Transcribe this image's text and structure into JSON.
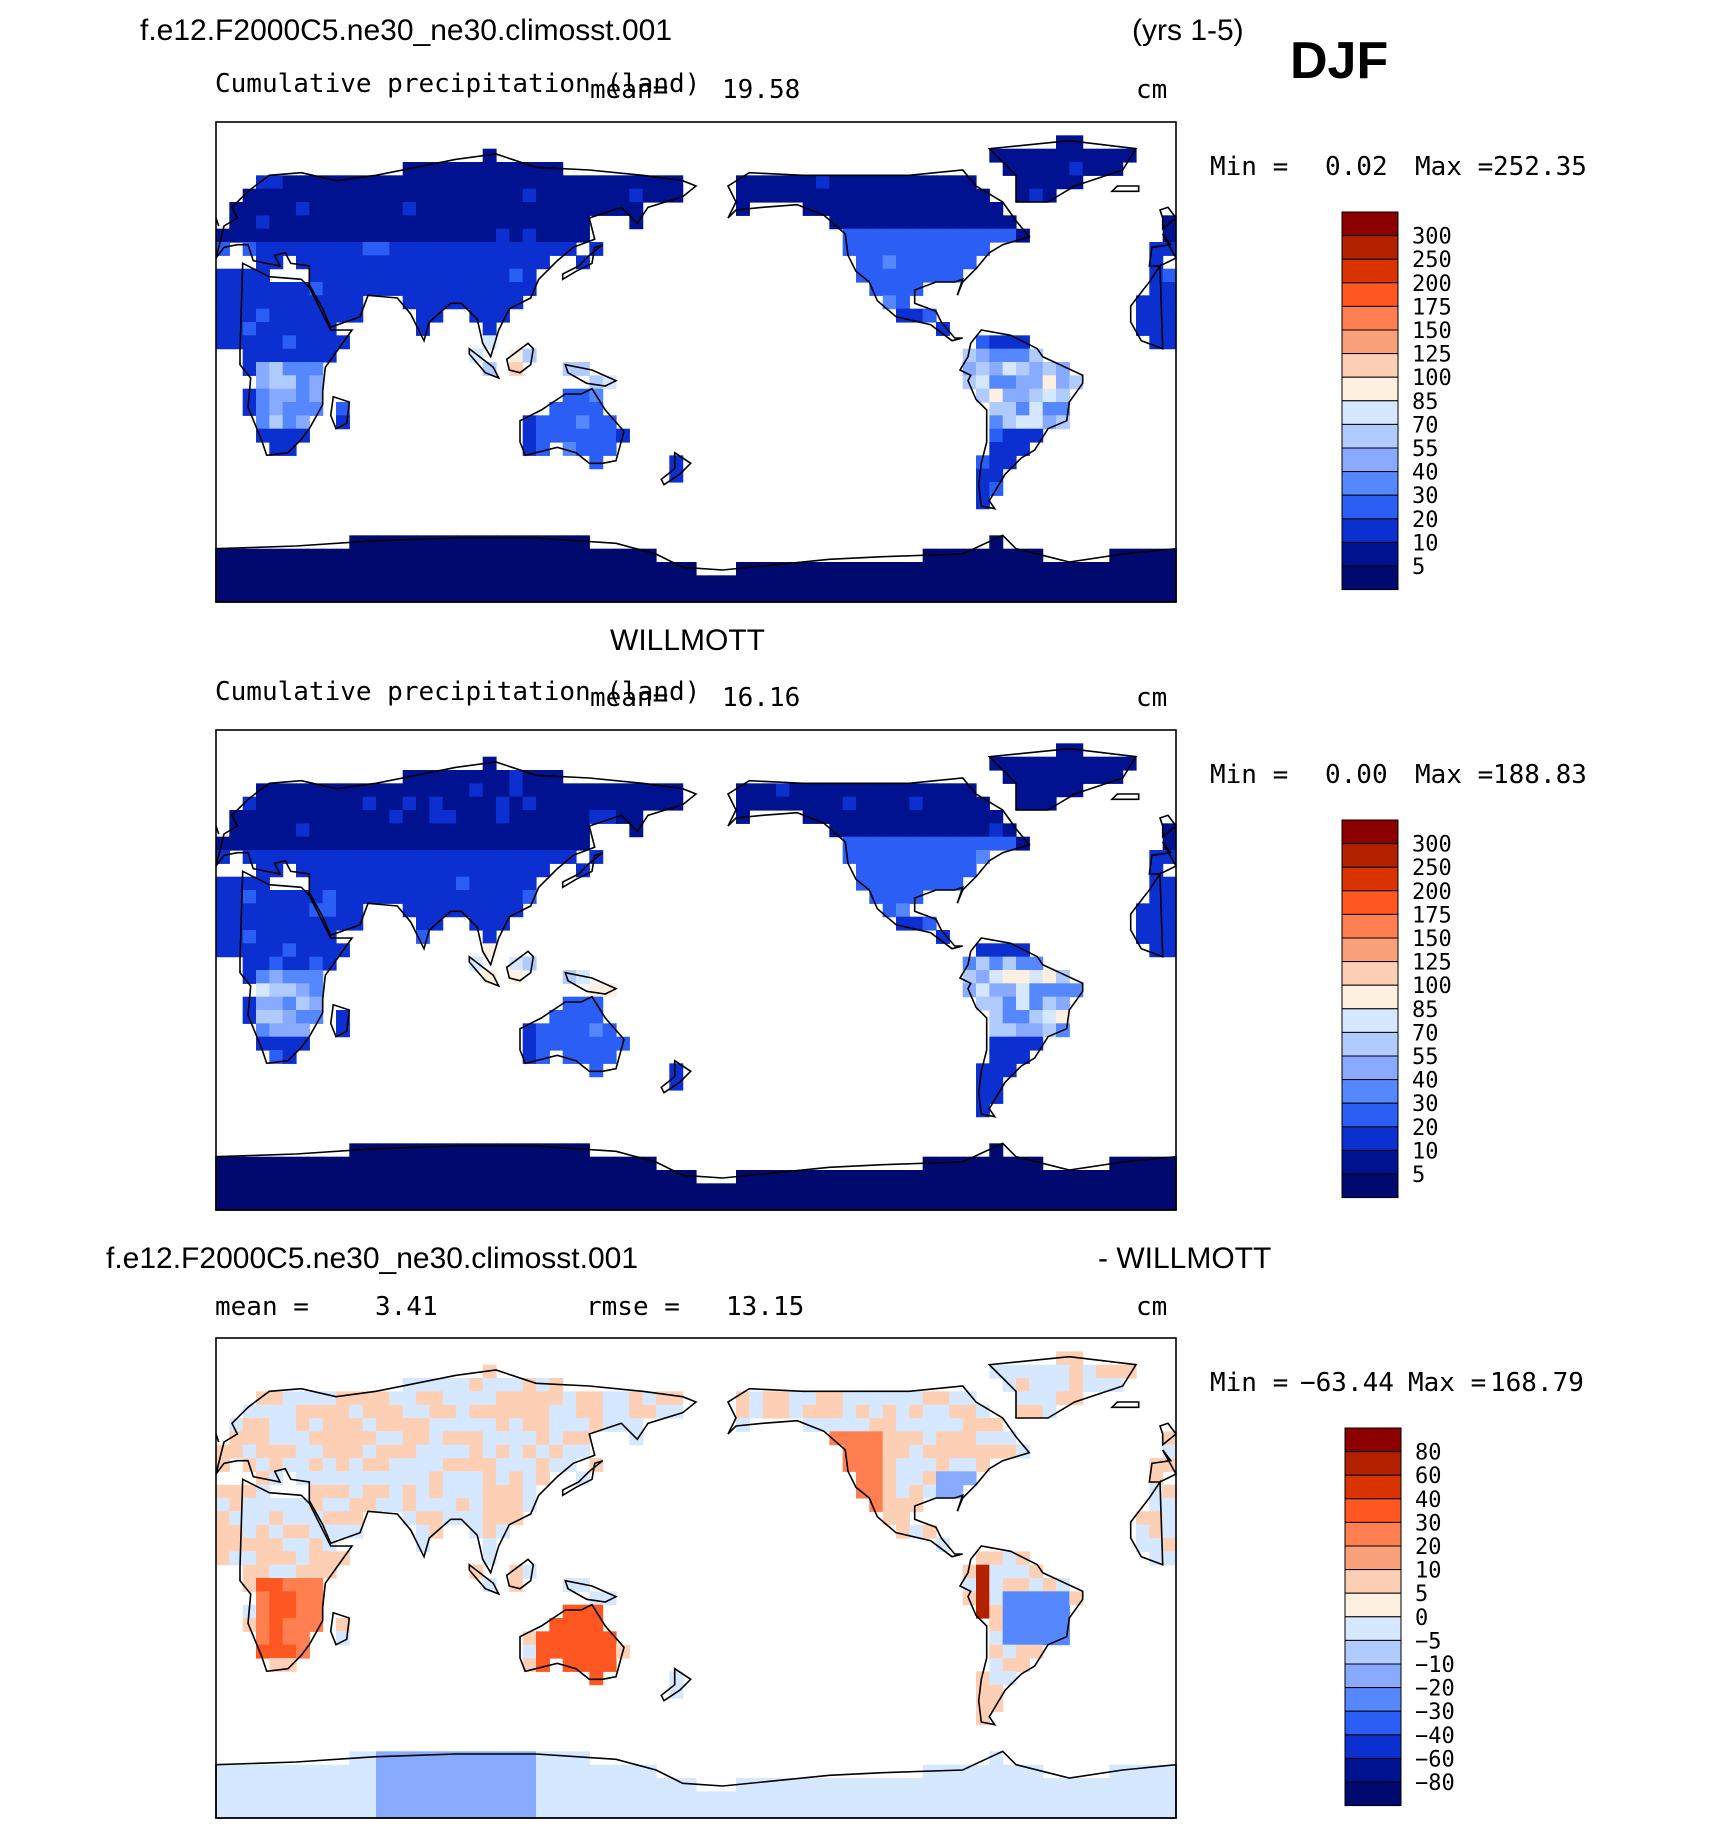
{
  "season": "DJF",
  "chart_data": [
    {
      "type": "heatmap",
      "header_left": "f.e12.F2000C5.ne30_ne30.climosst.001",
      "header_right": "(yrs 1-5)",
      "title": "Cumulative precipitation (land)",
      "mean_label": "mean=",
      "mean_value": "19.58",
      "units": "cm",
      "min_label": "Min =",
      "min_value": "0.02",
      "max_label": "Max =",
      "max_value": "252.35",
      "colorbar_levels": [
        "300",
        "250",
        "200",
        "175",
        "150",
        "125",
        "100",
        "85",
        "70",
        "55",
        "40",
        "30",
        "20",
        "10",
        "5"
      ],
      "colors": [
        "#8b0000",
        "#b22200",
        "#d93300",
        "#ff5722",
        "#ff7f50",
        "#f7a07a",
        "#fdd0b5",
        "#fdf0e0",
        "#d6e8ff",
        "#b0ccff",
        "#88aaff",
        "#5588ff",
        "#2a5ef5",
        "#0c2fd0",
        "#00128f",
        "#000a6e"
      ],
      "field_style": "precip",
      "x_range": [
        0,
        360
      ],
      "y_range": [
        -90,
        90
      ]
    },
    {
      "type": "heatmap",
      "header_center": "WILLMOTT",
      "title": "Cumulative precipitation (land)",
      "mean_label": "mean=",
      "mean_value": "16.16",
      "units": "cm",
      "min_label": "Min =",
      "min_value": "0.00",
      "max_label": "Max =",
      "max_value": "188.83",
      "colorbar_levels": [
        "300",
        "250",
        "200",
        "175",
        "150",
        "125",
        "100",
        "85",
        "70",
        "55",
        "40",
        "30",
        "20",
        "10",
        "5"
      ],
      "colors": [
        "#8b0000",
        "#b22200",
        "#d93300",
        "#ff5722",
        "#ff7f50",
        "#f7a07a",
        "#fdd0b5",
        "#fdf0e0",
        "#d6e8ff",
        "#b0ccff",
        "#88aaff",
        "#5588ff",
        "#2a5ef5",
        "#0c2fd0",
        "#00128f",
        "#000a6e"
      ],
      "field_style": "precip",
      "x_range": [
        0,
        360
      ],
      "y_range": [
        -90,
        90
      ]
    },
    {
      "type": "heatmap",
      "header_left": "f.e12.F2000C5.ne30_ne30.climosst.001",
      "header_right": "- WILLMOTT",
      "mean_label": "mean =",
      "mean_value": "3.41",
      "rmse_label": "rmse =",
      "rmse_value": "13.15",
      "units": "cm",
      "min_label": "Min =",
      "min_value": "−63.44",
      "max_label": "Max =",
      "max_value": "168.79",
      "colorbar_levels": [
        "80",
        "60",
        "40",
        "30",
        "20",
        "10",
        "5",
        "0",
        "−5",
        "−10",
        "−20",
        "−30",
        "−40",
        "−60",
        "−80"
      ],
      "colors": [
        "#8b0000",
        "#b22200",
        "#d93300",
        "#ff5722",
        "#ff7f50",
        "#f7a07a",
        "#fdd0b5",
        "#fdf0e0",
        "#d6e8ff",
        "#b0ccff",
        "#88aaff",
        "#5588ff",
        "#2a5ef5",
        "#0c2fd0",
        "#00128f",
        "#000a6e"
      ],
      "field_style": "diff",
      "x_range": [
        0,
        360
      ],
      "y_range": [
        -90,
        90
      ]
    }
  ]
}
